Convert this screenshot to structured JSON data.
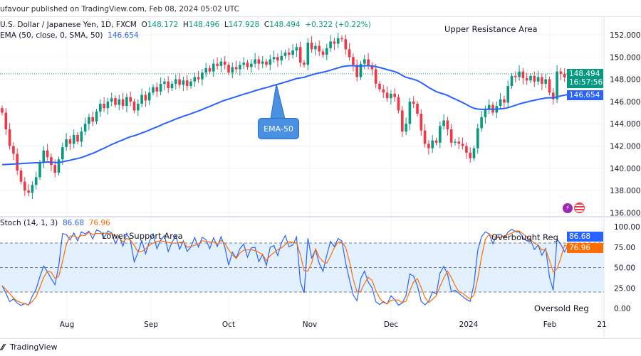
{
  "header": {
    "published": "ufavour published on TradingView.com, Feb 08, 2024 05:02 UTC",
    "symbol": "U.S. Dollar / Japanese Yen, 1D, FXCM",
    "o_label": "O",
    "o": "148.172",
    "h_label": "H",
    "h": "148.496",
    "l_label": "L",
    "l": "147.928",
    "c_label": "C",
    "c": "148.494",
    "change": "+0.322 (+0.22%)",
    "ema_label": "EMA (50, close, 0, SMA, 50)",
    "ema_value": "146.654"
  },
  "annotations": {
    "upper": "Upper Resistance Area",
    "lower": "Lower Support Area",
    "ema_callout": "EMA-50",
    "overbought": "Overbought Reg",
    "oversold": "Oversold Reg"
  },
  "price_tags": {
    "last": "148.494",
    "countdown": "16:57:56",
    "ema": "146.654"
  },
  "stoch": {
    "label": "Stoch (14, 1, 3)",
    "k": "86.68",
    "d": "76.96",
    "k_color": "#2962ff",
    "d_color": "#ff6d00"
  },
  "footer": {
    "logo": "TradingView"
  },
  "colors": {
    "up": "#089981",
    "down": "#f23645",
    "ema": "#2962ff",
    "band": "#e3f0fd"
  },
  "chart_data": {
    "type": "candlestick",
    "price_axis": {
      "ticks": [
        "152.000",
        "150.000",
        "148.000",
        "146.000",
        "144.000",
        "142.000",
        "140.000",
        "138.000",
        "136.000"
      ],
      "range": [
        135.5,
        153.5
      ]
    },
    "stoch_axis": {
      "ticks": [
        "100.00",
        "75.00",
        "50.00",
        "25.00",
        "0.00"
      ],
      "levels": [
        80,
        50,
        20
      ]
    },
    "x_ticks": [
      "Aug",
      "Sep",
      "Oct",
      "Nov",
      "Dec",
      "2024",
      "Feb",
      "21"
    ],
    "closes": [
      145.0,
      143.5,
      142.0,
      141.3,
      139.8,
      138.8,
      138.0,
      137.8,
      138.5,
      139.2,
      140.5,
      141.6,
      141.0,
      140.3,
      139.6,
      140.8,
      141.9,
      142.6,
      142.2,
      143.0,
      142.4,
      143.3,
      144.0,
      144.6,
      144.2,
      145.1,
      145.8,
      145.4,
      146.0,
      146.3,
      145.7,
      146.2,
      145.6,
      146.4,
      146.0,
      145.2,
      145.8,
      146.6,
      146.1,
      146.8,
      147.3,
      146.9,
      147.6,
      147.8,
      147.2,
      147.6,
      148.0,
      147.5,
      147.9,
      147.4,
      147.8,
      148.2,
      148.0,
      148.6,
      149.0,
      148.7,
      149.4,
      149.2,
      149.6,
      149.3,
      148.6,
      149.1,
      148.9,
      149.3,
      149.5,
      149.1,
      149.4,
      149.8,
      149.4,
      149.6,
      149.3,
      149.8,
      150.0,
      149.7,
      150.1,
      150.4,
      150.2,
      150.6,
      150.9,
      149.5,
      149.3,
      151.3,
      150.7,
      151.0,
      150.5,
      150.2,
      150.8,
      151.4,
      151.2,
      151.7,
      151.6,
      150.7,
      150.0,
      149.3,
      148.2,
      149.4,
      149.8,
      149.2,
      148.9,
      147.6,
      147.1,
      146.8,
      146.3,
      146.7,
      146.4,
      145.2,
      143.3,
      144.0,
      146.0,
      145.8,
      144.9,
      143.4,
      142.2,
      141.8,
      142.5,
      142.3,
      143.8,
      144.3,
      143.5,
      142.3,
      142.4,
      142.2,
      142.0,
      141.4,
      140.9,
      141.8,
      143.6,
      144.6,
      145.3,
      145.7,
      145.0,
      145.6,
      146.2,
      145.9,
      147.4,
      148.3,
      148.2,
      148.7,
      148.1,
      147.9,
      148.3,
      147.8,
      148.2,
      147.6,
      148.0,
      146.8,
      146.2,
      148.7,
      148.5,
      148.172,
      148.494
    ],
    "ema_period": 50,
    "stoch_params": [
      14,
      1,
      3
    ]
  }
}
